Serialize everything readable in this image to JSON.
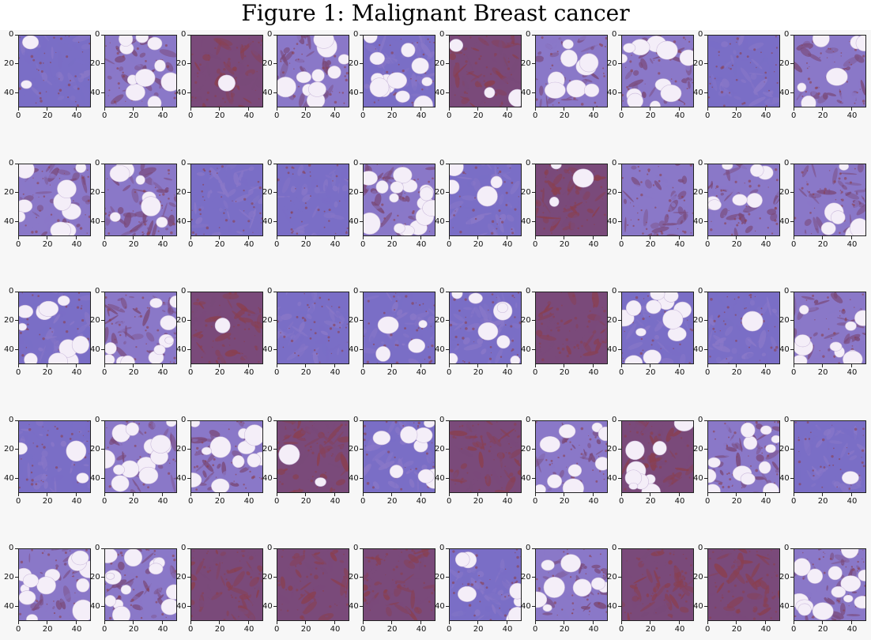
{
  "figure": {
    "title": "Figure 1: Malignant Breast cancer",
    "rows": 5,
    "cols": 10,
    "x_ticks": [
      "0",
      "20",
      "40"
    ],
    "y_ticks": [
      "0",
      "20",
      "40"
    ],
    "x_range": [
      0,
      50
    ],
    "y_range": [
      0,
      50
    ],
    "colors": {
      "stroma_light": "#8a78c8",
      "stroma_blue": "#7a6ec6",
      "stroma_dark": "#7a4a7a",
      "nucleus_dense": "#8a3f4f",
      "fat_vacuole": "#f4eef8"
    },
    "tiles": [
      {
        "fat": 0.1,
        "tone": "blue"
      },
      {
        "fat": 0.45,
        "tone": "purple"
      },
      {
        "fat": 0.05,
        "tone": "dark"
      },
      {
        "fat": 0.45,
        "tone": "purple"
      },
      {
        "fat": 0.6,
        "tone": "blue"
      },
      {
        "fat": 0.15,
        "tone": "dark"
      },
      {
        "fat": 0.35,
        "tone": "purple"
      },
      {
        "fat": 0.55,
        "tone": "purple"
      },
      {
        "fat": 0.0,
        "tone": "blue"
      },
      {
        "fat": 0.25,
        "tone": "purple"
      },
      {
        "fat": 0.4,
        "tone": "purple"
      },
      {
        "fat": 0.3,
        "tone": "purple"
      },
      {
        "fat": 0.0,
        "tone": "blue"
      },
      {
        "fat": 0.0,
        "tone": "blue"
      },
      {
        "fat": 0.75,
        "tone": "purple"
      },
      {
        "fat": 0.2,
        "tone": "blue"
      },
      {
        "fat": 0.15,
        "tone": "dark"
      },
      {
        "fat": 0.0,
        "tone": "purple"
      },
      {
        "fat": 0.3,
        "tone": "purple"
      },
      {
        "fat": 0.25,
        "tone": "purple"
      },
      {
        "fat": 0.55,
        "tone": "blue"
      },
      {
        "fat": 0.5,
        "tone": "purple"
      },
      {
        "fat": 0.05,
        "tone": "dark"
      },
      {
        "fat": 0.0,
        "tone": "blue"
      },
      {
        "fat": 0.2,
        "tone": "blue"
      },
      {
        "fat": 0.35,
        "tone": "blue"
      },
      {
        "fat": 0.0,
        "tone": "dark"
      },
      {
        "fat": 0.6,
        "tone": "blue"
      },
      {
        "fat": 0.05,
        "tone": "blue"
      },
      {
        "fat": 0.45,
        "tone": "purple"
      },
      {
        "fat": 0.15,
        "tone": "blue"
      },
      {
        "fat": 0.6,
        "tone": "purple"
      },
      {
        "fat": 0.55,
        "tone": "purple"
      },
      {
        "fat": 0.1,
        "tone": "dark"
      },
      {
        "fat": 0.35,
        "tone": "blue"
      },
      {
        "fat": 0.0,
        "tone": "dark"
      },
      {
        "fat": 0.4,
        "tone": "purple"
      },
      {
        "fat": 0.4,
        "tone": "dark"
      },
      {
        "fat": 0.55,
        "tone": "purple"
      },
      {
        "fat": 0.05,
        "tone": "blue"
      },
      {
        "fat": 0.55,
        "tone": "purple"
      },
      {
        "fat": 0.65,
        "tone": "purple"
      },
      {
        "fat": 0.0,
        "tone": "dark"
      },
      {
        "fat": 0.0,
        "tone": "dark"
      },
      {
        "fat": 0.0,
        "tone": "dark"
      },
      {
        "fat": 0.3,
        "tone": "blue"
      },
      {
        "fat": 0.35,
        "tone": "purple"
      },
      {
        "fat": 0.0,
        "tone": "dark"
      },
      {
        "fat": 0.0,
        "tone": "dark"
      },
      {
        "fat": 0.65,
        "tone": "purple"
      }
    ]
  }
}
